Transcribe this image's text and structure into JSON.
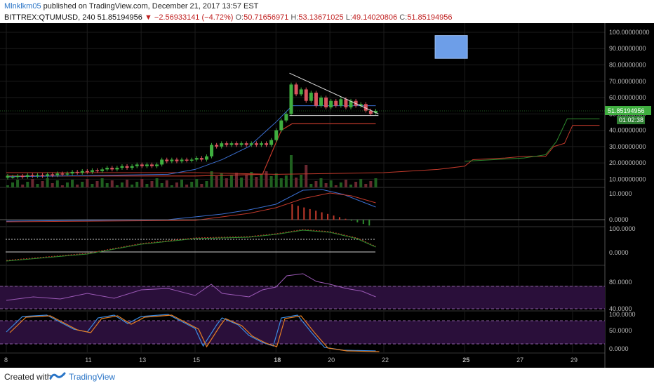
{
  "header": {
    "user": "Mlnklkm05",
    "published_text": "published on TradingView.com, December 21, 2017 13:57 EST",
    "symbol": "BITTREX:QTUMUSD, 240",
    "last": "51.85194956",
    "change": "−2.56933141 (−4.72%)",
    "o_label": "O:",
    "o_value": "50.71656971",
    "h_label": "H:",
    "h_value": "53.13671025",
    "l_label": "L:",
    "l_value": "49.14020806",
    "c_label": "C:",
    "c_value": "51.85194956"
  },
  "footer": {
    "created_with": "Created with",
    "brand": "TradingView"
  },
  "colors": {
    "background": "#000000",
    "up": "#3fae3f",
    "down": "#d9535f",
    "grid": "#1c1c1c",
    "rsi_band": "#2a0f3a"
  },
  "chart_data": {
    "type": "candlestick",
    "price_axis": {
      "ticks": [
        10,
        20,
        30,
        40,
        50,
        60,
        70,
        80,
        90,
        100
      ],
      "tick_labels": [
        "10.00000000",
        "20.00000000",
        "30.00000000",
        "40.00000000",
        "50.00000000",
        "60.00000000",
        "70.00000000",
        "80.00000000",
        "90.00000000",
        "100.00000000"
      ],
      "ylim": [
        5,
        103
      ],
      "last_price_label": "51.85194956",
      "countdown_label": "01:02:38"
    },
    "x_axis": {
      "ticks": [
        8,
        11,
        13,
        15,
        18,
        20,
        22,
        25,
        27,
        29
      ],
      "tick_labels": [
        "8",
        "11",
        "13",
        "15",
        "18",
        "20",
        "22",
        "25",
        "27",
        "29"
      ],
      "bold_ticks": [
        "18",
        "25"
      ]
    },
    "candles": [
      [
        11,
        12
      ],
      [
        11.5,
        11.5
      ],
      [
        11.5,
        12
      ],
      [
        12,
        11.5
      ],
      [
        11.5,
        12.5
      ],
      [
        12.5,
        12
      ],
      [
        12,
        12.5
      ],
      [
        12.5,
        12
      ],
      [
        12,
        13
      ],
      [
        13,
        12.5
      ],
      [
        12.5,
        13.5
      ],
      [
        13.5,
        13
      ],
      [
        13,
        13.5
      ],
      [
        13.5,
        14.5
      ],
      [
        14.5,
        14
      ],
      [
        14,
        15
      ],
      [
        15,
        14.5
      ],
      [
        14.5,
        15.5
      ],
      [
        15.5,
        15
      ],
      [
        15,
        16
      ],
      [
        16,
        17
      ],
      [
        17,
        16
      ],
      [
        16,
        17
      ],
      [
        17,
        18
      ],
      [
        18,
        17
      ],
      [
        17,
        18
      ],
      [
        18,
        19
      ],
      [
        19,
        18
      ],
      [
        18,
        19
      ],
      [
        19,
        18
      ],
      [
        18,
        19
      ],
      [
        19,
        22
      ],
      [
        22,
        21
      ],
      [
        21,
        22
      ],
      [
        22,
        21
      ],
      [
        21,
        22
      ],
      [
        22,
        21.5
      ],
      [
        21.5,
        22
      ],
      [
        22,
        23
      ],
      [
        23,
        22
      ],
      [
        22,
        24
      ],
      [
        24,
        31
      ],
      [
        31,
        30
      ],
      [
        30,
        32
      ],
      [
        32,
        31
      ],
      [
        31,
        32
      ],
      [
        32,
        31
      ],
      [
        31,
        32
      ],
      [
        32,
        31
      ],
      [
        31,
        32
      ],
      [
        32,
        31
      ],
      [
        31,
        32
      ],
      [
        32,
        31
      ],
      [
        31,
        34
      ],
      [
        34,
        40
      ],
      [
        40,
        46
      ],
      [
        46,
        50
      ],
      [
        50,
        68
      ],
      [
        68,
        62
      ],
      [
        62,
        65
      ],
      [
        65,
        58
      ],
      [
        58,
        63
      ],
      [
        63,
        55
      ],
      [
        55,
        60
      ],
      [
        60,
        54
      ],
      [
        54,
        58
      ],
      [
        58,
        55
      ],
      [
        55,
        59
      ],
      [
        59,
        54
      ],
      [
        54,
        58
      ],
      [
        58,
        55
      ],
      [
        55,
        56
      ],
      [
        56,
        52
      ],
      [
        52,
        50
      ],
      [
        50.7,
        51.9
      ]
    ],
    "overlay_lines": {
      "triangle_upper": [
        [
          18.5,
          75
        ],
        [
          21.8,
          50
        ]
      ],
      "triangle_lower": [
        [
          18.5,
          49
        ],
        [
          21.8,
          49
        ]
      ],
      "target_box": {
        "x": [
          23.9,
          25.1
        ],
        "y": [
          84,
          98
        ]
      }
    },
    "indicators": {
      "macd": {
        "label": "10.0000",
        "zero_label": "0.0000"
      },
      "stoch_cross": {
        "labels": [
          "100.0000",
          "0.0000"
        ]
      },
      "rsi": {
        "labels": [
          "80.0000",
          "40.0000"
        ],
        "bands": [
          70,
          30
        ]
      },
      "stoch_rsi": {
        "labels": [
          "100.0000",
          "50.0000",
          "0.0000"
        ]
      }
    }
  }
}
